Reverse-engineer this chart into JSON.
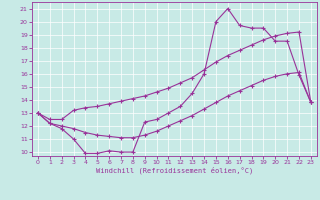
{
  "xlabel": "Windchill (Refroidissement éolien,°C)",
  "xlim": [
    -0.5,
    23.5
  ],
  "ylim": [
    9.7,
    21.5
  ],
  "xticks": [
    0,
    1,
    2,
    3,
    4,
    5,
    6,
    7,
    8,
    9,
    10,
    11,
    12,
    13,
    14,
    15,
    16,
    17,
    18,
    19,
    20,
    21,
    22,
    23
  ],
  "yticks": [
    10,
    11,
    12,
    13,
    14,
    15,
    16,
    17,
    18,
    19,
    20,
    21
  ],
  "bg_color": "#c8eae6",
  "line_color": "#993399",
  "line1_x": [
    0,
    1,
    2,
    3,
    4,
    5,
    6,
    7,
    8,
    9,
    10,
    11,
    12,
    13,
    14,
    15,
    16,
    17,
    18,
    19,
    20,
    21,
    22,
    23
  ],
  "line1_y": [
    13.0,
    12.2,
    11.8,
    11.0,
    9.9,
    9.9,
    10.1,
    10.0,
    10.0,
    12.3,
    12.5,
    13.0,
    13.5,
    14.5,
    16.0,
    20.0,
    21.0,
    19.7,
    19.5,
    19.5,
    18.5,
    18.5,
    15.9,
    13.8
  ],
  "line2_x": [
    0,
    1,
    2,
    3,
    4,
    5,
    6,
    7,
    8,
    9,
    10,
    11,
    12,
    13,
    14,
    15,
    16,
    17,
    18,
    19,
    20,
    21,
    22,
    23
  ],
  "line2_y": [
    13.0,
    12.5,
    12.5,
    13.2,
    13.4,
    13.5,
    13.7,
    13.9,
    14.1,
    14.3,
    14.6,
    14.9,
    15.3,
    15.7,
    16.3,
    16.9,
    17.4,
    17.8,
    18.2,
    18.6,
    18.9,
    19.1,
    19.2,
    13.8
  ],
  "line3_x": [
    0,
    1,
    2,
    3,
    4,
    5,
    6,
    7,
    8,
    9,
    10,
    11,
    12,
    13,
    14,
    15,
    16,
    17,
    18,
    19,
    20,
    21,
    22,
    23
  ],
  "line3_y": [
    13.0,
    12.2,
    12.0,
    11.8,
    11.5,
    11.3,
    11.2,
    11.1,
    11.1,
    11.3,
    11.6,
    12.0,
    12.4,
    12.8,
    13.3,
    13.8,
    14.3,
    14.7,
    15.1,
    15.5,
    15.8,
    16.0,
    16.1,
    13.8
  ]
}
